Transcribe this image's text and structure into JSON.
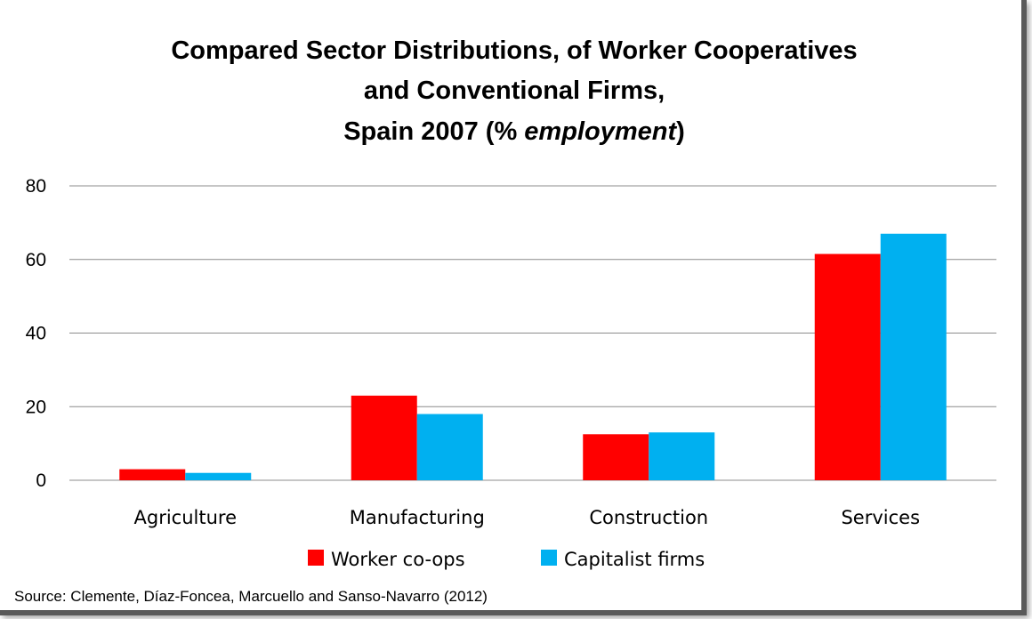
{
  "chart_data": {
    "type": "bar",
    "title": "Compared Sector Distributions, of Worker Cooperatives and Conventional Firms, Spain 2007 (% employment)",
    "title_lines": [
      {
        "text": "Compared Sector Distributions, of Worker Cooperatives"
      },
      {
        "text": "and Conventional Firms,"
      },
      {
        "text_before": "Spain 2007 (% ",
        "text_italic": "employment",
        "text_after": ")"
      }
    ],
    "categories": [
      "Agriculture",
      "Manufacturing",
      "Construction",
      "Services"
    ],
    "series": [
      {
        "name": "Worker co-ops",
        "color": "#ff0000",
        "values": [
          3,
          23,
          12.5,
          61.5
        ]
      },
      {
        "name": "Capitalist firms",
        "color": "#00b0f0",
        "values": [
          2,
          18,
          13,
          67
        ]
      }
    ],
    "ylim": [
      0,
      80
    ],
    "yticks": [
      "0",
      "20",
      "40",
      "60",
      "80"
    ],
    "xlabel": "",
    "ylabel": "",
    "grid": true,
    "legend_position": "bottom"
  },
  "source": "Source: Clemente, Díaz-Foncea, Marcuello and Sanso-Navarro (2012)"
}
